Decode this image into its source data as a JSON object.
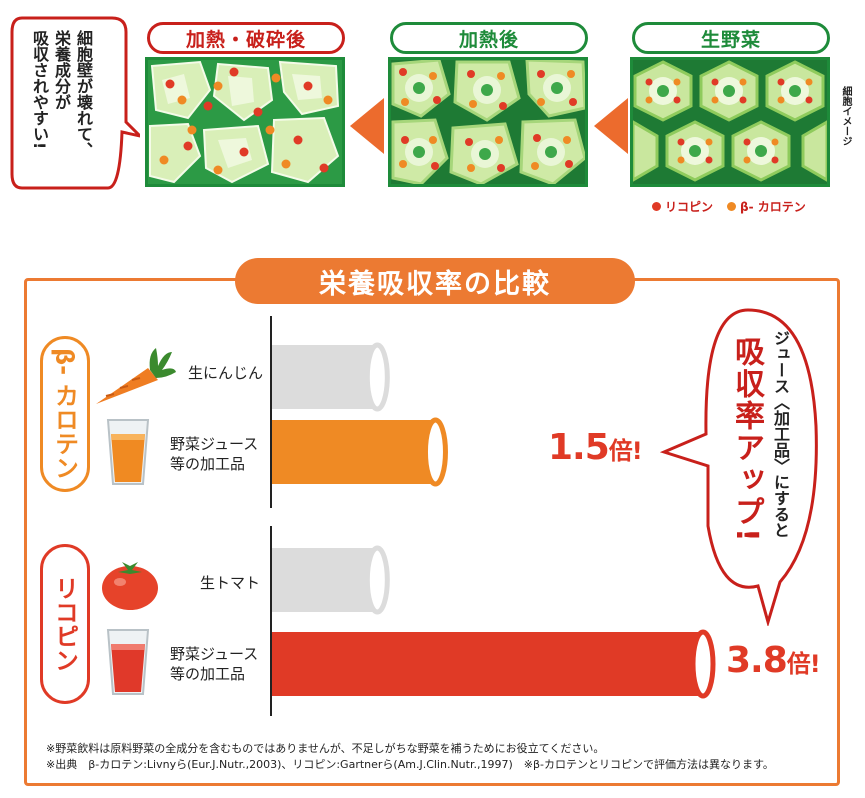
{
  "diagram": {
    "stages": [
      {
        "label": "加熱・破砕後",
        "style": "red"
      },
      {
        "label": "加熱後",
        "style": "green"
      },
      {
        "label": "生野菜",
        "style": "green"
      }
    ],
    "callout": [
      "細胞壁が壊れて、",
      "栄養成分が",
      "吸収されやすい!"
    ],
    "side_note": "細胞イメージ",
    "legend": [
      {
        "label": "リコピン",
        "color": "#e03a26"
      },
      {
        "label": "β- カロテン",
        "color": "#ef8a24"
      }
    ]
  },
  "chart_data": {
    "type": "bar",
    "title": "栄養吸収率の比較",
    "orientation": "horizontal",
    "groups": [
      {
        "name": "β- カロテン",
        "color": "#ef8a24",
        "bars": [
          {
            "label": "生にんじん",
            "value": 1.0,
            "color": "#dcdcdc"
          },
          {
            "label_lines": [
              "野菜ジュース",
              "等の加工品"
            ],
            "value": 1.5,
            "color": "#ef8a24",
            "multiplier": "1.5",
            "suffix": "倍!"
          }
        ]
      },
      {
        "name": "リコピン",
        "color": "#e03a26",
        "bars": [
          {
            "label": "生トマト",
            "value": 1.0,
            "color": "#dcdcdc"
          },
          {
            "label_lines": [
              "野菜ジュース",
              "等の加工品"
            ],
            "value": 3.8,
            "color": "#e03a26",
            "multiplier": "3.8",
            "suffix": "倍!"
          }
        ]
      }
    ],
    "callout": {
      "lines": [
        "ジュース〈加工品〉にすると",
        "吸収率アップ!"
      ]
    }
  },
  "footnotes": [
    "※野菜飲料は原料野菜の全成分を含むものではありませんが、不足しがちな野菜を補うためにお役立てください。",
    "※出典　β-カロテン:Livnyら(Eur.J.Nutr.,2003)、リコピン:Gartnerら(Am.J.Clin.Nutr.,1997)　※β-カロテンとリコピンで評価方法は異なります。"
  ]
}
